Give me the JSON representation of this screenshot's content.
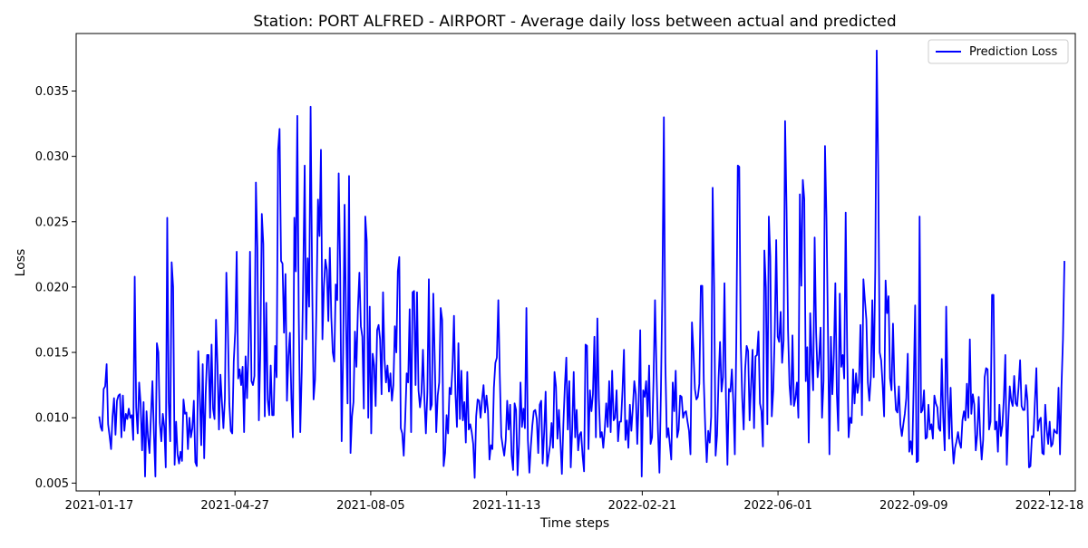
{
  "chart_data": {
    "type": "line",
    "title": "Station: PORT ALFRED - AIRPORT - Average daily loss between actual and predicted",
    "xlabel": "Time steps",
    "ylabel": "Loss",
    "x_start": "2021-01-17",
    "x_end": "2022-12-29",
    "xlim": [
      "2020-12-31",
      "2023-01-06"
    ],
    "ylim": [
      0.0044,
      0.0394
    ],
    "x_ticks": [
      "2021-01-17",
      "2021-04-27",
      "2021-08-05",
      "2021-11-13",
      "2022-02-21",
      "2022-06-01",
      "2022-09-09",
      "2022-12-18"
    ],
    "y_ticks": [
      "0.005",
      "0.010",
      "0.015",
      "0.020",
      "0.025",
      "0.030",
      "0.035"
    ],
    "y_tick_values": [
      0.005,
      0.01,
      0.015,
      0.02,
      0.025,
      0.03,
      0.035
    ],
    "grid": false,
    "legend_position": "top-right",
    "series": [
      {
        "name": "Prediction Loss",
        "color": "#0000ff",
        "values": [
          0.0101,
          0.0093,
          0.009,
          0.0122,
          0.0124,
          0.0141,
          0.0095,
          0.0086,
          0.0076,
          0.0101,
          0.0115,
          0.0087,
          0.0113,
          0.0117,
          0.0118,
          0.0085,
          0.0117,
          0.009,
          0.0103,
          0.0099,
          0.0107,
          0.01,
          0.0102,
          0.0083,
          0.0208,
          0.0108,
          0.0088,
          0.0127,
          0.0111,
          0.0075,
          0.0112,
          0.0055,
          0.0105,
          0.0085,
          0.0073,
          0.0102,
          0.0128,
          0.0088,
          0.0055,
          0.0157,
          0.015,
          0.0096,
          0.0082,
          0.0103,
          0.0093,
          0.0062,
          0.0253,
          0.0112,
          0.0082,
          0.0219,
          0.02,
          0.0064,
          0.0097,
          0.0072,
          0.0065,
          0.0074,
          0.0067,
          0.0114,
          0.0103,
          0.0104,
          0.0076,
          0.01,
          0.0085,
          0.0092,
          0.0113,
          0.0066,
          0.0063,
          0.0151,
          0.0118,
          0.0079,
          0.0141,
          0.0069,
          0.0118,
          0.0148,
          0.0148,
          0.01,
          0.0156,
          0.0107,
          0.0099,
          0.0175,
          0.014,
          0.0091,
          0.0133,
          0.0112,
          0.0092,
          0.0115,
          0.0211,
          0.017,
          0.0111,
          0.009,
          0.0088,
          0.0143,
          0.0166,
          0.0227,
          0.013,
          0.0137,
          0.0125,
          0.0139,
          0.0089,
          0.0147,
          0.0115,
          0.0154,
          0.0227,
          0.0128,
          0.0125,
          0.0132,
          0.028,
          0.023,
          0.0098,
          0.0152,
          0.0256,
          0.0233,
          0.0101,
          0.0188,
          0.0114,
          0.0102,
          0.014,
          0.0102,
          0.0102,
          0.0155,
          0.0131,
          0.0305,
          0.0321,
          0.022,
          0.0218,
          0.0165,
          0.021,
          0.0113,
          0.0147,
          0.0165,
          0.0115,
          0.0085,
          0.0253,
          0.0212,
          0.0331,
          0.0177,
          0.0089,
          0.0135,
          0.0208,
          0.0293,
          0.016,
          0.0222,
          0.0185,
          0.0338,
          0.0209,
          0.0114,
          0.0129,
          0.0188,
          0.0267,
          0.0239,
          0.0305,
          0.016,
          0.02,
          0.0221,
          0.0213,
          0.0174,
          0.023,
          0.0177,
          0.015,
          0.0143,
          0.0202,
          0.019,
          0.0287,
          0.0213,
          0.0082,
          0.015,
          0.0263,
          0.0172,
          0.0111,
          0.0285,
          0.0073,
          0.0101,
          0.0112,
          0.0166,
          0.0139,
          0.0183,
          0.0211,
          0.017,
          0.0162,
          0.0107,
          0.0254,
          0.0235,
          0.01,
          0.0185,
          0.0088,
          0.0149,
          0.014,
          0.0109,
          0.0167,
          0.0171,
          0.016,
          0.0118,
          0.0196,
          0.0145,
          0.0127,
          0.014,
          0.012,
          0.0134,
          0.0113,
          0.0125,
          0.017,
          0.015,
          0.0212,
          0.0223,
          0.0092,
          0.0088,
          0.0071,
          0.0099,
          0.0134,
          0.0127,
          0.0183,
          0.0089,
          0.0196,
          0.0197,
          0.0125,
          0.0196,
          0.0121,
          0.0108,
          0.0119,
          0.0152,
          0.0114,
          0.0088,
          0.012,
          0.0206,
          0.0106,
          0.011,
          0.0195,
          0.0144,
          0.0089,
          0.0117,
          0.0127,
          0.0184,
          0.0175,
          0.0063,
          0.0073,
          0.0102,
          0.0088,
          0.0123,
          0.0118,
          0.0139,
          0.0178,
          0.0118,
          0.0093,
          0.0157,
          0.0099,
          0.0136,
          0.0098,
          0.0112,
          0.0081,
          0.0135,
          0.0091,
          0.0095,
          0.0089,
          0.008,
          0.0054,
          0.0101,
          0.0114,
          0.0113,
          0.01,
          0.0114,
          0.0125,
          0.0104,
          0.0117,
          0.0105,
          0.0068,
          0.0079,
          0.0076,
          0.0123,
          0.0142,
          0.0146,
          0.019,
          0.0132,
          0.0086,
          0.0078,
          0.0071,
          0.0083,
          0.0113,
          0.0091,
          0.011,
          0.0071,
          0.006,
          0.0111,
          0.0106,
          0.0056,
          0.008,
          0.0127,
          0.0093,
          0.0107,
          0.0092,
          0.0184,
          0.0083,
          0.0058,
          0.0078,
          0.0094,
          0.0105,
          0.0106,
          0.0099,
          0.0073,
          0.011,
          0.0113,
          0.0065,
          0.0089,
          0.012,
          0.0063,
          0.0071,
          0.0079,
          0.0096,
          0.0077,
          0.0135,
          0.0124,
          0.0084,
          0.0106,
          0.0082,
          0.0057,
          0.0095,
          0.0124,
          0.0146,
          0.0091,
          0.0128,
          0.0062,
          0.0092,
          0.0135,
          0.0085,
          0.0106,
          0.0075,
          0.0087,
          0.0089,
          0.0071,
          0.0059,
          0.0156,
          0.0155,
          0.0076,
          0.0121,
          0.0105,
          0.0118,
          0.0162,
          0.0085,
          0.0176,
          0.0115,
          0.0085,
          0.0089,
          0.0077,
          0.0091,
          0.0111,
          0.0093,
          0.0128,
          0.0089,
          0.0136,
          0.0098,
          0.01,
          0.0121,
          0.0082,
          0.0097,
          0.0097,
          0.0121,
          0.0152,
          0.0083,
          0.0098,
          0.0077,
          0.011,
          0.009,
          0.0108,
          0.0128,
          0.0118,
          0.008,
          0.0114,
          0.0167,
          0.0055,
          0.0121,
          0.0116,
          0.0128,
          0.0101,
          0.014,
          0.008,
          0.0085,
          0.0129,
          0.019,
          0.0136,
          0.009,
          0.0058,
          0.012,
          0.0201,
          0.033,
          0.0142,
          0.0085,
          0.0092,
          0.008,
          0.0068,
          0.0127,
          0.0105,
          0.0136,
          0.0085,
          0.0091,
          0.0117,
          0.0116,
          0.01,
          0.0104,
          0.0105,
          0.0097,
          0.009,
          0.0072,
          0.0173,
          0.0151,
          0.0122,
          0.0114,
          0.0116,
          0.0126,
          0.0201,
          0.0201,
          0.0128,
          0.0092,
          0.0066,
          0.009,
          0.0081,
          0.0101,
          0.0276,
          0.02,
          0.0071,
          0.0087,
          0.013,
          0.0158,
          0.012,
          0.0131,
          0.0203,
          0.0115,
          0.0064,
          0.0122,
          0.012,
          0.0137,
          0.0111,
          0.0072,
          0.0158,
          0.0293,
          0.0292,
          0.0157,
          0.0115,
          0.0091,
          0.0137,
          0.0155,
          0.0151,
          0.0098,
          0.0125,
          0.0152,
          0.0092,
          0.0147,
          0.0148,
          0.0166,
          0.0111,
          0.0105,
          0.0078,
          0.0228,
          0.02,
          0.0095,
          0.0254,
          0.0223,
          0.0101,
          0.0121,
          0.0165,
          0.0236,
          0.0162,
          0.0158,
          0.0181,
          0.0142,
          0.0159,
          0.0327,
          0.0259,
          0.0167,
          0.0125,
          0.011,
          0.0163,
          0.0109,
          0.0115,
          0.0127,
          0.01,
          0.0271,
          0.0201,
          0.0282,
          0.0267,
          0.0128,
          0.0154,
          0.0081,
          0.018,
          0.0145,
          0.0121,
          0.0238,
          0.0165,
          0.0131,
          0.0145,
          0.0169,
          0.01,
          0.0128,
          0.0308,
          0.0253,
          0.0167,
          0.0072,
          0.0162,
          0.0118,
          0.0148,
          0.0203,
          0.0119,
          0.009,
          0.0195,
          0.0139,
          0.0148,
          0.013,
          0.0257,
          0.0151,
          0.0085,
          0.01,
          0.0096,
          0.0137,
          0.0111,
          0.0134,
          0.0119,
          0.0127,
          0.0171,
          0.0102,
          0.0206,
          0.019,
          0.0175,
          0.0127,
          0.0113,
          0.0131,
          0.019,
          0.0131,
          0.0213,
          0.0381,
          0.029,
          0.015,
          0.0144,
          0.0125,
          0.0101,
          0.0205,
          0.018,
          0.0193,
          0.013,
          0.0121,
          0.0172,
          0.0127,
          0.0106,
          0.0104,
          0.0124,
          0.0095,
          0.0086,
          0.0095,
          0.0103,
          0.0115,
          0.0149,
          0.0074,
          0.0082,
          0.0072,
          0.0125,
          0.0186,
          0.0066,
          0.0067,
          0.0254,
          0.0104,
          0.0106,
          0.0121,
          0.0084,
          0.0085,
          0.011,
          0.0091,
          0.0095,
          0.0084,
          0.0117,
          0.0111,
          0.0108,
          0.0092,
          0.009,
          0.0145,
          0.01,
          0.0075,
          0.0185,
          0.0119,
          0.0084,
          0.0123,
          0.0085,
          0.0065,
          0.0077,
          0.0082,
          0.0089,
          0.0081,
          0.0077,
          0.0098,
          0.0105,
          0.0098,
          0.0126,
          0.01,
          0.016,
          0.0103,
          0.0118,
          0.011,
          0.0075,
          0.0087,
          0.0116,
          0.0087,
          0.0068,
          0.0083,
          0.0131,
          0.0138,
          0.0137,
          0.0091,
          0.0097,
          0.0194,
          0.0194,
          0.0091,
          0.0097,
          0.0074,
          0.011,
          0.0086,
          0.0094,
          0.0115,
          0.0148,
          0.0064,
          0.0097,
          0.0124,
          0.0113,
          0.0109,
          0.0132,
          0.0111,
          0.0109,
          0.0124,
          0.0144,
          0.0109,
          0.0106,
          0.0106,
          0.0125,
          0.0113,
          0.0062,
          0.0063,
          0.0086,
          0.0085,
          0.0112,
          0.0138,
          0.009,
          0.0098,
          0.01,
          0.0073,
          0.0072,
          0.011,
          0.0091,
          0.008,
          0.0097,
          0.0078,
          0.008,
          0.0091,
          0.0089,
          0.0088,
          0.0123,
          0.0072,
          0.0124,
          0.016,
          0.022
        ]
      }
    ]
  }
}
